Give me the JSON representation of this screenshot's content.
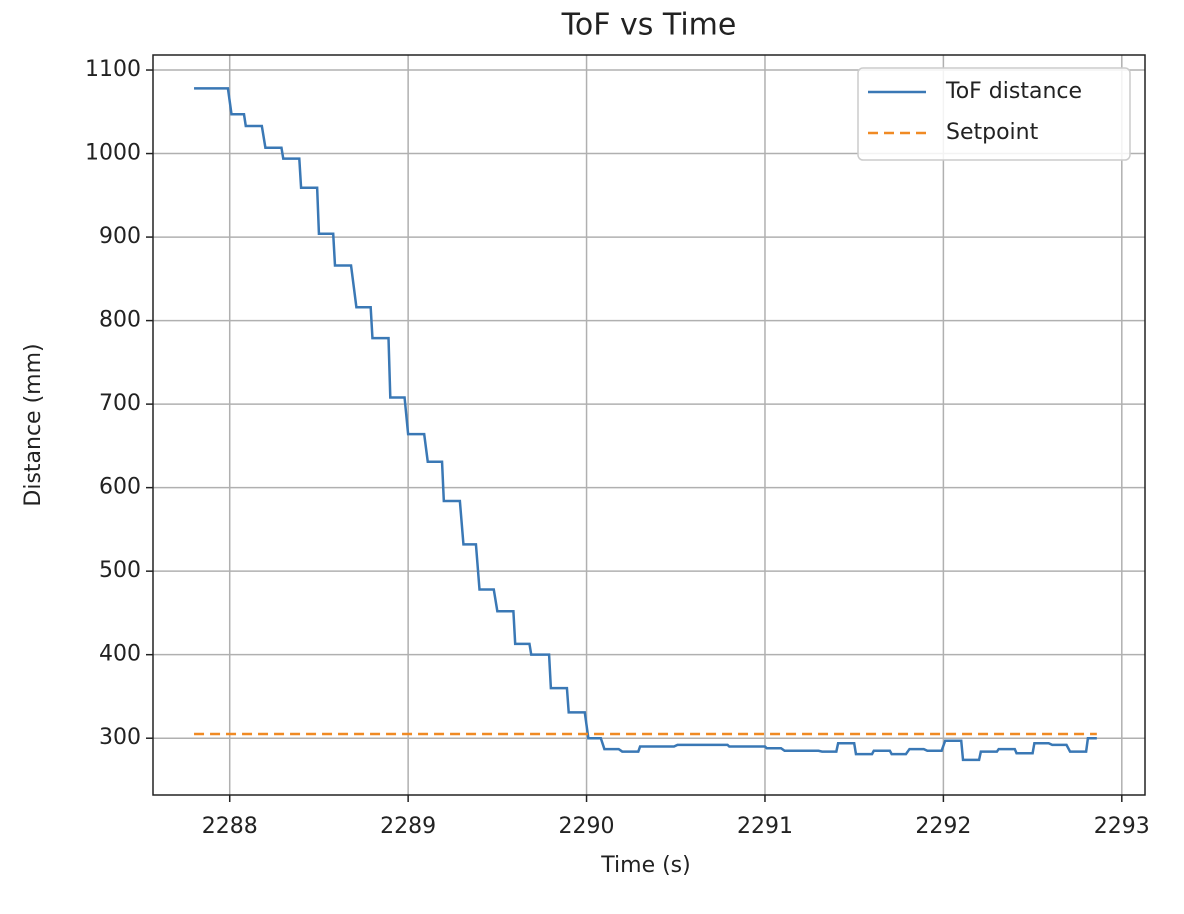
{
  "chart_data": {
    "type": "line",
    "title": "ToF vs Time",
    "xlabel": "Time (s)",
    "ylabel": "Distance (mm)",
    "xlim": [
      2287.57,
      2293.13
    ],
    "ylim": [
      232,
      1118
    ],
    "xticks": [
      2288,
      2289,
      2290,
      2291,
      2292,
      2293
    ],
    "yticks": [
      300,
      400,
      500,
      600,
      700,
      800,
      900,
      1000,
      1100
    ],
    "grid": true,
    "legend": "upper right",
    "series": [
      {
        "name": "ToF distance",
        "color": "#3a78b5",
        "style": "solid",
        "x": [
          2287.8,
          2287.99,
          2288.01,
          2288.08,
          2288.09,
          2288.18,
          2288.2,
          2288.29,
          2288.3,
          2288.39,
          2288.4,
          2288.49,
          2288.5,
          2288.58,
          2288.59,
          2288.68,
          2288.71,
          2288.79,
          2288.8,
          2288.89,
          2288.9,
          2288.98,
          2289.0,
          2289.09,
          2289.11,
          2289.19,
          2289.2,
          2289.29,
          2289.31,
          2289.38,
          2289.4,
          2289.48,
          2289.5,
          2289.59,
          2289.6,
          2289.68,
          2289.69,
          2289.79,
          2289.8,
          2289.89,
          2289.9,
          2289.99,
          2290.01,
          2290.08,
          2290.1,
          2290.18,
          2290.2,
          2290.29,
          2290.3,
          2290.49,
          2290.51,
          2290.79,
          2290.8,
          2291.0,
          2291.01,
          2291.09,
          2291.11,
          2291.3,
          2291.32,
          2291.4,
          2291.41,
          2291.5,
          2291.51,
          2291.6,
          2291.61,
          2291.7,
          2291.71,
          2291.79,
          2291.81,
          2291.89,
          2291.91,
          2291.99,
          2292.01,
          2292.1,
          2292.11,
          2292.2,
          2292.21,
          2292.3,
          2292.31,
          2292.4,
          2292.41,
          2292.5,
          2292.51,
          2292.59,
          2292.61,
          2292.69,
          2292.71,
          2292.8,
          2292.81,
          2292.86
        ],
        "values": [
          1078,
          1078,
          1047,
          1047,
          1033,
          1033,
          1007,
          1007,
          994,
          994,
          959,
          959,
          904,
          904,
          866,
          866,
          816,
          816,
          779,
          779,
          708,
          708,
          664,
          664,
          631,
          631,
          584,
          584,
          532,
          532,
          478,
          478,
          452,
          452,
          413,
          413,
          400,
          400,
          360,
          360,
          331,
          331,
          300,
          300,
          287,
          287,
          284,
          284,
          290,
          290,
          292,
          292,
          290,
          290,
          288,
          288,
          285,
          285,
          284,
          284,
          294,
          294,
          281,
          281,
          285,
          285,
          281,
          281,
          287,
          287,
          285,
          285,
          297,
          297,
          274,
          274,
          284,
          284,
          287,
          287,
          282,
          282,
          294,
          294,
          292,
          292,
          284,
          284,
          300,
          300
        ]
      },
      {
        "name": "Setpoint",
        "color": "#f08a24",
        "style": "dashed",
        "x": [
          2287.8,
          2292.86
        ],
        "values": [
          305,
          305
        ]
      }
    ]
  }
}
